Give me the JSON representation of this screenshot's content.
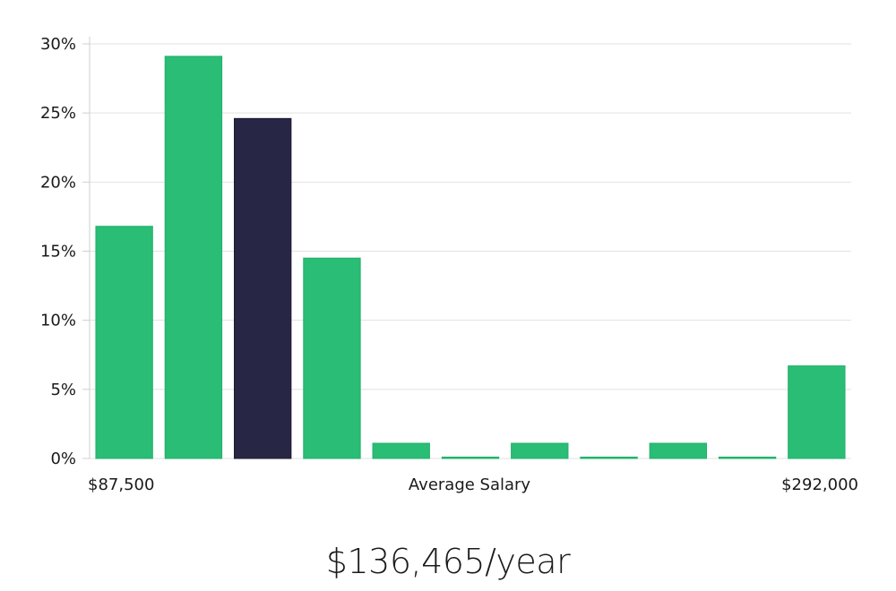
{
  "chart_data": {
    "type": "bar",
    "title": "",
    "xlabel": "Average Salary",
    "ylabel": "",
    "x_min_label": "$87,500",
    "x_max_label": "$292,000",
    "ylim": [
      0,
      30
    ],
    "yticks": [
      0,
      5,
      10,
      15,
      20,
      25,
      30
    ],
    "ytick_labels": [
      "0%",
      "5%",
      "10%",
      "15%",
      "20%",
      "25%",
      "30%"
    ],
    "grid": true,
    "values": [
      16.8,
      29.1,
      24.6,
      14.5,
      1.1,
      0.1,
      1.1,
      0.1,
      1.1,
      0.1,
      6.7
    ],
    "highlight_index": 2,
    "colors": {
      "bar": "#2abd75",
      "bar_border": "#22b06a",
      "highlight": "#272644",
      "grid": "#e2e2e2",
      "axis": "#cfcfcf"
    }
  },
  "summary": {
    "average_salary": "$136,465/year"
  }
}
